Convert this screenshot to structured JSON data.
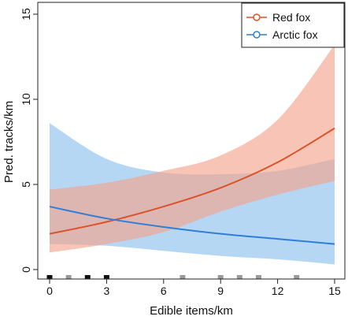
{
  "chart_data": {
    "type": "line",
    "title": "",
    "xlabel": "Edible items/km",
    "ylabel": "Pred. tracks/km",
    "xlim": [
      0,
      15
    ],
    "ylim": [
      0,
      15
    ],
    "xticks": [
      0,
      3,
      6,
      9,
      12,
      15
    ],
    "yticks": [
      0,
      5,
      10,
      15
    ],
    "grid": false,
    "legend_position": "top-right",
    "series": [
      {
        "name": "Red fox",
        "color": "#d9532b",
        "band_color": "#f5a58d",
        "x": [
          0,
          3,
          6,
          9,
          12,
          15
        ],
        "y": [
          2.1,
          2.8,
          3.7,
          4.8,
          6.3,
          8.3
        ],
        "lower": [
          1.0,
          1.5,
          2.2,
          3.4,
          4.4,
          5.2
        ],
        "upper": [
          4.7,
          5.1,
          5.8,
          6.7,
          8.8,
          13.2
        ]
      },
      {
        "name": "Arctic fox",
        "color": "#2f7ed8",
        "band_color": "#8fc2ee",
        "x": [
          0,
          3,
          6,
          9,
          12,
          15
        ],
        "y": [
          3.7,
          3.0,
          2.5,
          2.1,
          1.8,
          1.5
        ],
        "lower": [
          1.5,
          1.4,
          1.1,
          0.8,
          0.6,
          0.3
        ],
        "upper": [
          8.6,
          6.5,
          5.7,
          5.6,
          5.8,
          6.5
        ]
      }
    ],
    "rug_dark": [
      0,
      2,
      3
    ],
    "rug_gray": [
      1,
      7,
      9,
      10,
      11,
      13
    ]
  }
}
